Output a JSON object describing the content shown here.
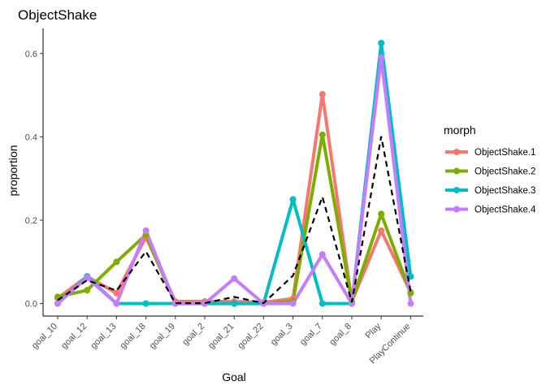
{
  "chart_data": {
    "type": "line",
    "title": "ObjectShake",
    "xlabel": "Goal",
    "ylabel": "proportion",
    "categories": [
      "goal_10",
      "goal_12",
      "goal_13",
      "goal_18",
      "goal_19",
      "goal_2",
      "goal_21",
      "goal_22",
      "goal_3",
      "goal_7",
      "goal_8",
      "Play",
      "PlayContinue"
    ],
    "ylim": [
      -0.03,
      0.66
    ],
    "yticks": [
      0.0,
      0.2,
      0.4,
      0.6
    ],
    "ytick_labels": [
      "0.0",
      "0.2",
      "0.4",
      "0.6"
    ],
    "grid": false,
    "legend": {
      "title": "morph",
      "position": "right"
    },
    "series": [
      {
        "name": "ObjectShake.1",
        "color": "#F8766D",
        "values": [
          0.013,
          0.065,
          0.025,
          0.16,
          0.005,
          0.005,
          0.005,
          0.003,
          0.012,
          0.502,
          0.005,
          0.175,
          0.027
        ]
      },
      {
        "name": "ObjectShake.2",
        "color": "#7CAE00",
        "values": [
          0.016,
          0.032,
          0.1,
          0.165,
          0.0,
          0.0,
          0.0,
          0.0,
          0.005,
          0.405,
          0.005,
          0.215,
          0.025
        ]
      },
      {
        "name": "ObjectShake.3",
        "color": "#00BFC4",
        "values": [
          0.0,
          0.065,
          0.0,
          0.0,
          0.0,
          0.0,
          0.0,
          0.0,
          0.25,
          0.0,
          0.0,
          0.625,
          0.065
        ]
      },
      {
        "name": "ObjectShake.4",
        "color": "#C77CFF",
        "values": [
          0.0,
          0.062,
          0.0,
          0.175,
          0.0,
          0.0,
          0.06,
          0.0,
          0.0,
          0.118,
          0.0,
          0.59,
          0.0
        ]
      }
    ],
    "mean_line": {
      "style": "dashed",
      "color": "#000000",
      "values": [
        0.008,
        0.056,
        0.031,
        0.125,
        0.001,
        0.001,
        0.016,
        0.001,
        0.067,
        0.256,
        0.003,
        0.401,
        0.029
      ]
    }
  }
}
